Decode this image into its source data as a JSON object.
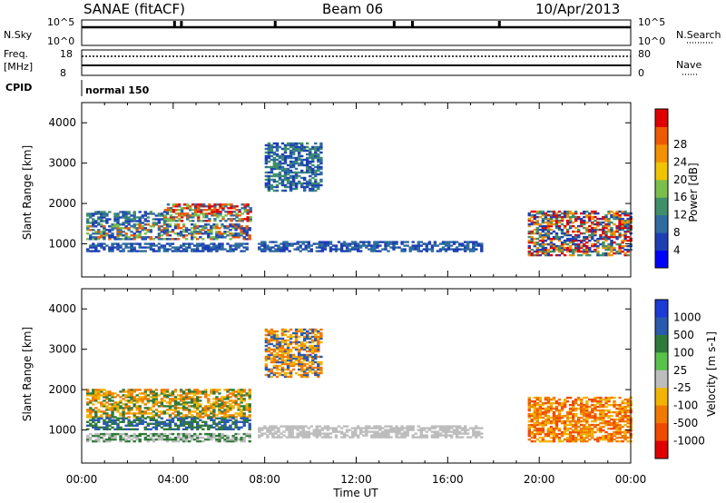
{
  "header": {
    "title": "SANAE (fitACF)",
    "beam": "Beam 06",
    "date": "10/Apr/2013"
  },
  "summary_panels": {
    "nsky_label": "N.Sky",
    "nsky_ticks": [
      "10^5",
      "10^0"
    ],
    "nsearch_label": "N.Search",
    "freq_label": "Freq.",
    "freq_unit": "[MHz]",
    "freq_ticks": [
      "18",
      "8"
    ],
    "nave_ticks": [
      "80",
      "0"
    ],
    "nave_label": "Nave",
    "cpid_label": "CPID",
    "cpid_value": "normal 150"
  },
  "colors": {
    "axis": "#000000",
    "power_scale": [
      "#0000ff",
      "#1e3fb4",
      "#2e6da0",
      "#3f8f6b",
      "#7bbf4a",
      "#f0c400",
      "#f39200",
      "#ef5a00",
      "#e00000"
    ],
    "velocity_scale": [
      "#1c3bd6",
      "#2a5ab0",
      "#2f7a3a",
      "#58c24a",
      "#bdbdbd",
      "#f2b400",
      "#f07a00",
      "#f04a00",
      "#e00000"
    ]
  },
  "chart_data": [
    {
      "type": "heatmap",
      "name": "power",
      "ylabel": "Slant Range [km]",
      "y_ticks": [
        1000,
        2000,
        3000,
        4000
      ],
      "ylim": [
        180,
        4500
      ],
      "x_ticks": [
        "00:00",
        "04:00",
        "08:00",
        "12:00",
        "16:00",
        "20:00",
        "00:00"
      ],
      "xlim_hours": [
        0,
        24
      ],
      "colorbar_label": "Power [dB]",
      "colorbar_ticks": [
        "4",
        "8",
        "12",
        "16",
        "20",
        "24",
        "28"
      ],
      "colorbar_range": [
        0,
        30
      ],
      "regions": [
        {
          "t0": 0.2,
          "t1": 7.4,
          "r0": 1100,
          "r1": 1500,
          "vals": [
            4,
            8,
            16,
            24
          ]
        },
        {
          "t0": 0.2,
          "t1": 3.8,
          "r0": 1500,
          "r1": 1800,
          "vals": [
            4,
            8,
            12
          ]
        },
        {
          "t0": 3.6,
          "t1": 7.4,
          "r0": 1550,
          "r1": 2000,
          "vals": [
            8,
            16,
            24,
            28
          ]
        },
        {
          "t0": 0.2,
          "t1": 7.4,
          "r0": 800,
          "r1": 1000,
          "vals": [
            4,
            8
          ]
        },
        {
          "t0": 7.7,
          "t1": 17.5,
          "r0": 800,
          "r1": 1050,
          "vals": [
            4,
            8
          ]
        },
        {
          "t0": 8.0,
          "t1": 10.5,
          "r0": 2300,
          "r1": 3500,
          "vals": [
            4,
            8,
            12
          ]
        },
        {
          "t0": 19.5,
          "t1": 24,
          "r0": 700,
          "r1": 1800,
          "vals": [
            4,
            12,
            20,
            28
          ]
        }
      ]
    },
    {
      "type": "heatmap",
      "name": "velocity",
      "ylabel": "Slant Range [km]",
      "y_ticks": [
        1000,
        2000,
        3000,
        4000
      ],
      "ylim": [
        180,
        4500
      ],
      "x_ticks": [
        "00:00",
        "04:00",
        "08:00",
        "12:00",
        "16:00",
        "20:00",
        "00:00"
      ],
      "xlim_hours": [
        0,
        24
      ],
      "xlabel": "Time UT",
      "colorbar_label": "Velocity [m s-1]",
      "colorbar_ticks": [
        "1000",
        "500",
        "100",
        "25",
        "-25",
        "-100",
        "-500",
        "-1000"
      ],
      "regions": [
        {
          "t0": 0.2,
          "t1": 7.4,
          "r0": 1300,
          "r1": 2000,
          "vals": [
            -100,
            -500,
            100
          ]
        },
        {
          "t0": 0.2,
          "t1": 7.4,
          "r0": 1000,
          "r1": 1300,
          "vals": [
            100,
            500
          ]
        },
        {
          "t0": 0.2,
          "t1": 7.4,
          "r0": 700,
          "r1": 900,
          "vals": [
            0,
            100
          ]
        },
        {
          "t0": 7.7,
          "t1": 17.5,
          "r0": 800,
          "r1": 1100,
          "vals": [
            0
          ]
        },
        {
          "t0": 8.0,
          "t1": 10.5,
          "r0": 2300,
          "r1": 3500,
          "vals": [
            -500,
            -100,
            500
          ]
        },
        {
          "t0": 19.5,
          "t1": 24,
          "r0": 700,
          "r1": 1800,
          "vals": [
            -500,
            -1000,
            -100
          ]
        }
      ]
    }
  ]
}
